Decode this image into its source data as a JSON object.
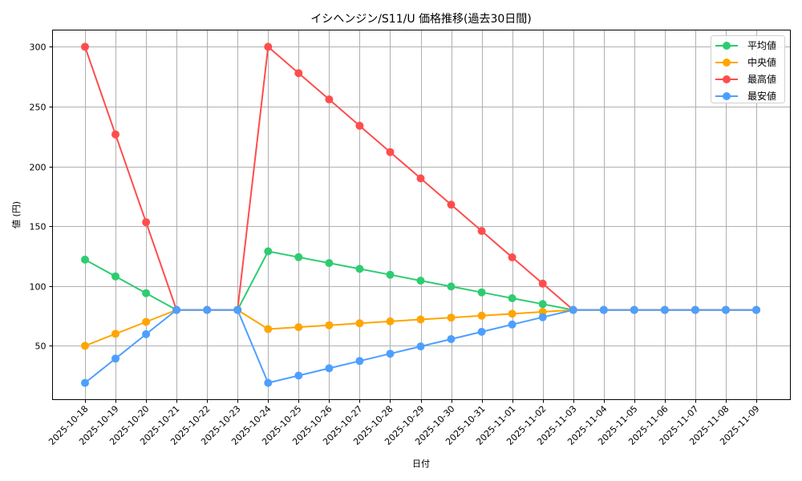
{
  "chart_data": {
    "type": "line",
    "title": "イシヘンジン/S11/U 価格推移(過去30日間)",
    "xlabel": "日付",
    "ylabel": "値 (円)",
    "ylim": [
      5,
      314
    ],
    "yticks": [
      50,
      100,
      150,
      200,
      250,
      300
    ],
    "grid": true,
    "legend_position": "upper right",
    "categories": [
      "2025-10-18",
      "2025-10-19",
      "2025-10-20",
      "2025-10-21",
      "2025-10-22",
      "2025-10-23",
      "2025-10-24",
      "2025-10-25",
      "2025-10-26",
      "2025-10-27",
      "2025-10-28",
      "2025-10-29",
      "2025-10-30",
      "2025-10-31",
      "2025-11-01",
      "2025-11-02",
      "2025-11-03",
      "2025-11-04",
      "2025-11-05",
      "2025-11-06",
      "2025-11-07",
      "2025-11-08",
      "2025-11-09"
    ],
    "series": [
      {
        "name": "平均値",
        "color": "#2ecc71",
        "values": [
          122,
          108,
          94,
          80,
          80,
          80,
          129,
          124.1,
          119.2,
          114.3,
          109.4,
          104.5,
          99.6,
          94.7,
          89.8,
          84.9,
          80,
          80,
          80,
          80,
          80,
          80,
          80
        ]
      },
      {
        "name": "中央値",
        "color": "#ffa500",
        "values": [
          50,
          60,
          70,
          80,
          80,
          80,
          64,
          65.6,
          67.2,
          68.8,
          70.4,
          72,
          73.6,
          75.2,
          76.8,
          78.4,
          80,
          80,
          80,
          80,
          80,
          80,
          80
        ]
      },
      {
        "name": "最高値",
        "color": "#ff4d4d",
        "values": [
          300,
          226.7,
          153.3,
          80,
          80,
          80,
          300,
          278,
          256,
          234,
          212,
          190,
          168,
          146,
          124,
          102,
          80,
          80,
          80,
          80,
          80,
          80,
          80
        ]
      },
      {
        "name": "最安値",
        "color": "#4d9fff",
        "values": [
          19,
          39.3,
          59.7,
          80,
          80,
          80,
          19,
          25.1,
          31.2,
          37.3,
          43.4,
          49.5,
          55.6,
          61.7,
          67.8,
          73.9,
          80,
          80,
          80,
          80,
          80,
          80,
          80
        ]
      }
    ]
  }
}
